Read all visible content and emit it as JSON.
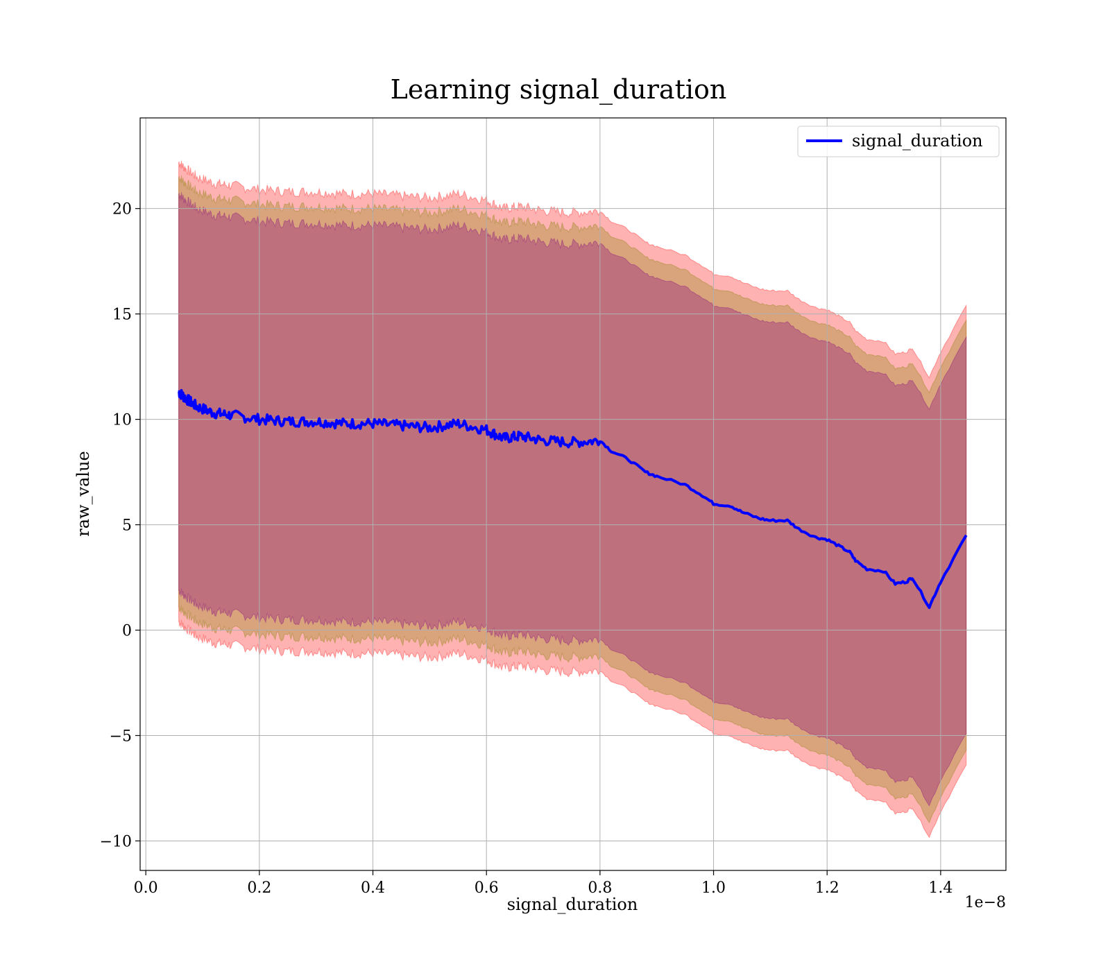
{
  "chart_data": {
    "type": "area",
    "title": "Learning signal_duration",
    "xlabel": "signal_duration",
    "ylabel": "raw_value",
    "x_offset_label": "1e−8",
    "xlim": [
      -1e-10,
      1.515e-08
    ],
    "ylim": [
      -11.4,
      24.3
    ],
    "x_ticks": [
      0.0,
      2e-09,
      4e-09,
      6e-09,
      8e-09,
      1e-08,
      1.2e-08,
      1.4e-08
    ],
    "x_tick_labels": [
      "0.0",
      "0.2",
      "0.4",
      "0.6",
      "0.8",
      "1.0",
      "1.2",
      "1.4"
    ],
    "y_ticks": [
      -10,
      -5,
      0,
      5,
      10,
      15,
      20
    ],
    "y_tick_labels": [
      "−10",
      "−5",
      "0",
      "5",
      "10",
      "15",
      "20"
    ],
    "grid": true,
    "legend_position": "top-right",
    "series": [
      {
        "name": "signal_duration",
        "color": "#0000ff",
        "x": [
          5.8e-10,
          7e-10,
          9e-10,
          1.2e-09,
          1.5e-09,
          2e-09,
          2.5e-09,
          3e-09,
          3.5e-09,
          4e-09,
          4.5e-09,
          5e-09,
          5.5e-09,
          6e-09,
          6.3e-09,
          6.6e-09,
          7e-09,
          7.5e-09,
          8e-09,
          8.2e-09,
          8.5e-09,
          8.8e-09,
          9e-09,
          9.5e-09,
          9.8e-09,
          1e-08,
          1.03e-08,
          1.05e-08,
          1.08e-08,
          1.1e-08,
          1.13e-08,
          1.15e-08,
          1.18e-08,
          1.2e-08,
          1.22e-08,
          1.24e-08,
          1.25e-08,
          1.27e-08,
          1.3e-08,
          1.32e-08,
          1.34e-08,
          1.35e-08,
          1.38e-08,
          1.4e-08,
          1.445e-08
        ],
        "y": [
          11.3,
          11.0,
          10.6,
          10.3,
          10.2,
          10.0,
          9.9,
          9.9,
          9.8,
          9.8,
          9.7,
          9.6,
          9.8,
          9.5,
          9.1,
          9.2,
          9.0,
          8.9,
          9.0,
          8.5,
          8.1,
          7.5,
          7.3,
          6.9,
          6.4,
          6.0,
          5.9,
          5.6,
          5.3,
          5.2,
          5.2,
          4.8,
          4.4,
          4.3,
          4.0,
          3.7,
          3.3,
          2.9,
          2.8,
          2.2,
          2.3,
          2.5,
          1.1,
          2.3,
          4.5
        ]
      }
    ],
    "bands": [
      {
        "color": "#ff0000",
        "opacity": 0.3,
        "half_width": 10.9
      },
      {
        "color": "#808000",
        "opacity": 0.3,
        "half_width": 10.2
      },
      {
        "color": "#800080",
        "opacity": 0.3,
        "half_width": 9.4
      }
    ]
  }
}
